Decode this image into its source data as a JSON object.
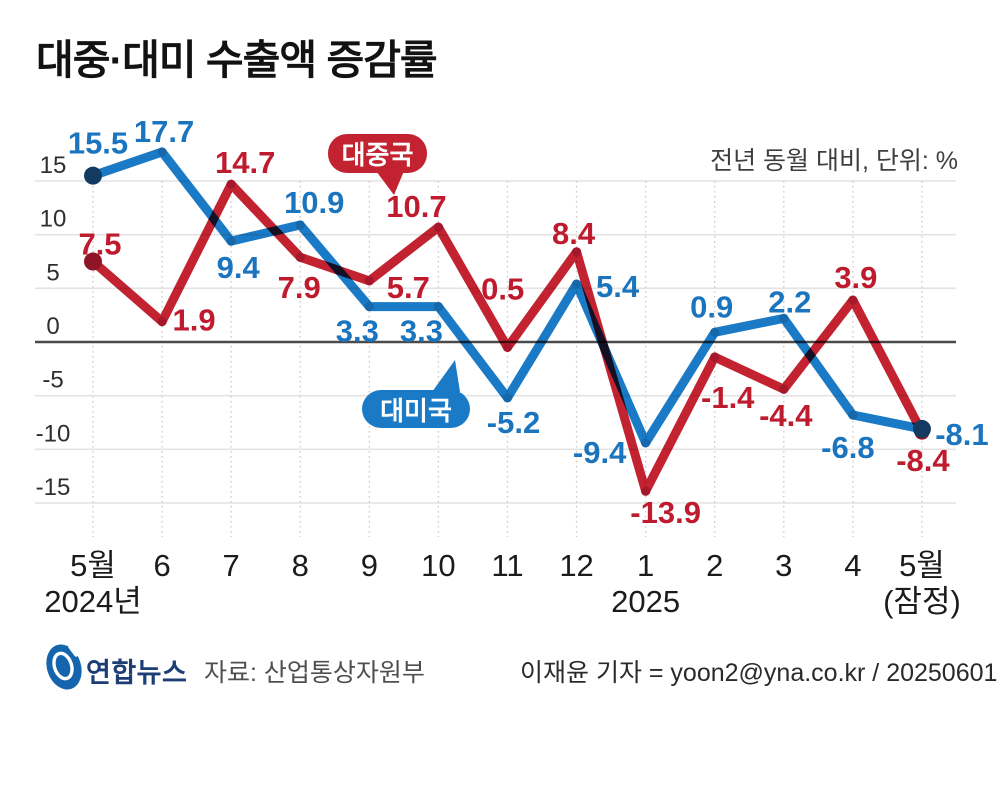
{
  "page": {
    "title": "대중·대미 수출액 증감률"
  },
  "chart_data": {
    "type": "line",
    "title": "대중·대미 수출액 증감률",
    "note": "전년 동월 대비, 단위: %",
    "x_axis": {
      "categories": [
        {
          "label": "5월",
          "sub": "2024년"
        },
        {
          "label": "6"
        },
        {
          "label": "7"
        },
        {
          "label": "8"
        },
        {
          "label": "9"
        },
        {
          "label": "10"
        },
        {
          "label": "11"
        },
        {
          "label": "12"
        },
        {
          "label": "1",
          "sub": "2025"
        },
        {
          "label": "2"
        },
        {
          "label": "3"
        },
        {
          "label": "4"
        },
        {
          "label": "5월",
          "sub": "(잠정)"
        }
      ]
    },
    "y_axis": {
      "ticks": [
        15,
        10,
        5,
        0,
        -5,
        -10,
        -15
      ],
      "range": [
        -15,
        15
      ]
    },
    "grid": {
      "horizontal": true,
      "vertical_dotted": true,
      "zero_line": true
    },
    "legend_position": "annotated-badges",
    "series": [
      {
        "name": "대중국",
        "key": "china",
        "color": "#c32230",
        "point_color": "#a5182b",
        "endpoint_color": "#8f1526",
        "label_color": "#bf1b2e",
        "values": [
          7.5,
          1.9,
          14.7,
          7.9,
          5.7,
          10.7,
          -0.5,
          8.4,
          -13.9,
          -1.4,
          -4.4,
          3.9,
          -8.4
        ],
        "label_offsets": [
          [
            7,
            -18
          ],
          [
            32,
            -2
          ],
          [
            14,
            -22
          ],
          [
            -1,
            30
          ],
          [
            39,
            6
          ],
          [
            -22,
            -21
          ],
          [
            -10,
            -59
          ],
          [
            -3,
            -19
          ],
          [
            20,
            21
          ],
          [
            13,
            40
          ],
          [
            2,
            26
          ],
          [
            3,
            -23
          ],
          [
            1,
            28
          ]
        ]
      },
      {
        "name": "대미국",
        "key": "us",
        "color": "#1b7ac5",
        "point_color": "#1668ab",
        "endpoint_color": "#133a61",
        "label_color": "#1b75be",
        "values": [
          15.5,
          17.7,
          9.4,
          10.9,
          3.3,
          3.3,
          -5.2,
          5.4,
          -9.4,
          0.9,
          2.2,
          -6.8,
          -8.1
        ],
        "label_offsets": [
          [
            5,
            -33
          ],
          [
            2,
            -21
          ],
          [
            7,
            26
          ],
          [
            14,
            -23
          ],
          [
            -12,
            24
          ],
          [
            -17,
            24
          ],
          [
            6,
            24
          ],
          [
            41,
            2
          ],
          [
            -46,
            9
          ],
          [
            -3,
            -26
          ],
          [
            6,
            -17
          ],
          [
            -5,
            32
          ],
          [
            40,
            5
          ]
        ]
      }
    ]
  },
  "footer": {
    "brand": "연합뉴스",
    "source": "자료: 산업통상자원부",
    "credit": "이재윤 기자 = yoon2@yna.co.kr / 20250601"
  }
}
